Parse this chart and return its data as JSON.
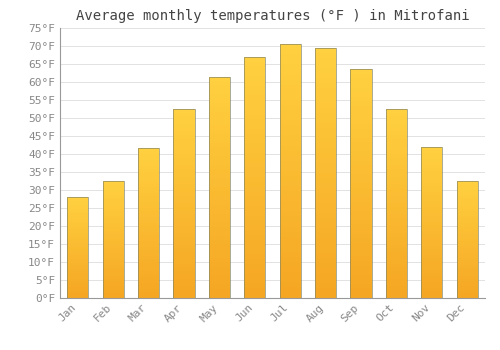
{
  "title": "Average monthly temperatures (°F ) in Mitrofani",
  "months": [
    "Jan",
    "Feb",
    "Mar",
    "Apr",
    "May",
    "Jun",
    "Jul",
    "Aug",
    "Sep",
    "Oct",
    "Nov",
    "Dec"
  ],
  "values": [
    28,
    32.5,
    41.5,
    52.5,
    61.5,
    67,
    70.5,
    69.5,
    63.5,
    52.5,
    42,
    32.5
  ],
  "bar_color_bottom": "#F5A623",
  "bar_color_top": "#FFD140",
  "bar_edge_color": "#888866",
  "background_color": "#FFFFFF",
  "grid_color": "#DDDDDD",
  "ylim": [
    0,
    75
  ],
  "yticks": [
    0,
    5,
    10,
    15,
    20,
    25,
    30,
    35,
    40,
    45,
    50,
    55,
    60,
    65,
    70,
    75
  ],
  "title_fontsize": 10,
  "tick_fontsize": 8,
  "tick_color": "#888888",
  "font_family": "monospace",
  "bar_width": 0.6
}
